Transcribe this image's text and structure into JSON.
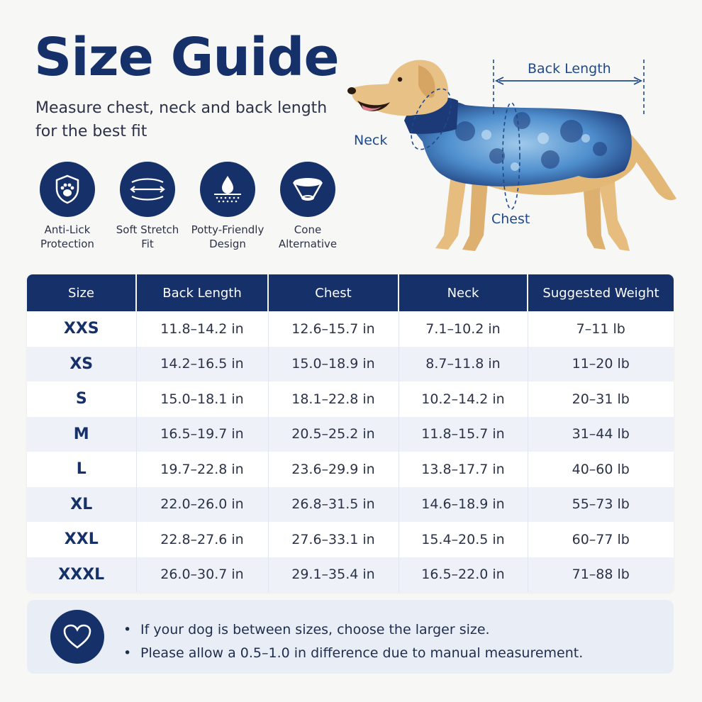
{
  "header": {
    "title": "Size Guide",
    "subtitle": "Measure chest, neck and back length for the best fit"
  },
  "features": [
    {
      "icon": "paw-shield-icon",
      "label": "Anti-Lick Protection"
    },
    {
      "icon": "stretch-arrows-icon",
      "label": "Soft Stretch Fit"
    },
    {
      "icon": "droplet-icon",
      "label": "Potty-Friendly Design"
    },
    {
      "icon": "cone-icon",
      "label": "Cone Alternative"
    }
  ],
  "diagram": {
    "back_length": "Back Length",
    "neck": "Neck",
    "chest": "Chest"
  },
  "table": {
    "headers": [
      "Size",
      "Back Length",
      "Chest",
      "Neck",
      "Suggested Weight"
    ],
    "rows": [
      [
        "XXS",
        "11.8–14.2 in",
        "12.6–15.7 in",
        "7.1–10.2 in",
        "7–11 lb"
      ],
      [
        "XS",
        "14.2–16.5 in",
        "15.0–18.9 in",
        "8.7–11.8 in",
        "11–20 lb"
      ],
      [
        "S",
        "15.0–18.1 in",
        "18.1–22.8 in",
        "10.2–14.2 in",
        "20–31 lb"
      ],
      [
        "M",
        "16.5–19.7 in",
        "20.5–25.2 in",
        "11.8–15.7 in",
        "31–44 lb"
      ],
      [
        "L",
        "19.7–22.8 in",
        "23.6–29.9 in",
        "13.8–17.7 in",
        "40–60 lb"
      ],
      [
        "XL",
        "22.0–26.0 in",
        "26.8–31.5 in",
        "14.6–18.9 in",
        "55–73 lb"
      ],
      [
        "XXL",
        "22.8–27.6 in",
        "27.6–33.1 in",
        "15.4–20.5 in",
        "60–77 lb"
      ],
      [
        "XXXL",
        "26.0–30.7 in",
        "29.1–35.4 in",
        "16.5–22.0 in",
        "71–88 lb"
      ]
    ]
  },
  "notes": {
    "icon": "heart-icon",
    "items": [
      "If your dog is between sizes, choose the larger size.",
      "Please allow a 0.5–1.0 in difference due to manual measurement."
    ]
  },
  "colors": {
    "navy": "#16306a",
    "background": "#f7f7f6",
    "row_alt": "#eef2f8",
    "accent_blue": "#1f4a8a"
  }
}
